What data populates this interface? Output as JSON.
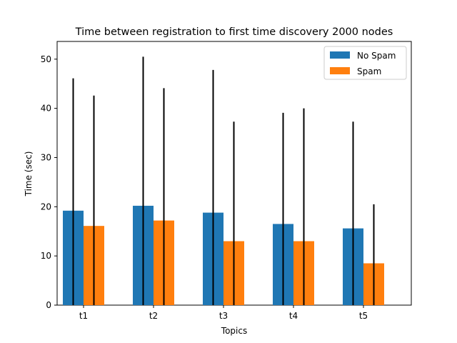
{
  "chart_data": {
    "type": "bar",
    "title": "Time between registration to first time discovery 2000 nodes",
    "xlabel": "Topics",
    "ylabel": "Time (sec)",
    "categories": [
      "t1",
      "t2",
      "t3",
      "t4",
      "t5"
    ],
    "ylim": [
      0,
      53.6
    ],
    "yticks": [
      0,
      10,
      20,
      30,
      40,
      50
    ],
    "series": [
      {
        "name": "No Spam",
        "color": "#1f77b4",
        "values": [
          19.2,
          20.2,
          18.8,
          16.5,
          15.6
        ],
        "error_high": [
          46.1,
          50.5,
          47.8,
          39.1,
          37.3
        ]
      },
      {
        "name": "Spam",
        "color": "#ff7f0e",
        "values": [
          16.1,
          17.2,
          13.0,
          13.0,
          8.5
        ],
        "error_high": [
          42.6,
          44.1,
          37.3,
          40.0,
          20.5
        ]
      }
    ],
    "legend_position": "top-right",
    "grid": false
  }
}
